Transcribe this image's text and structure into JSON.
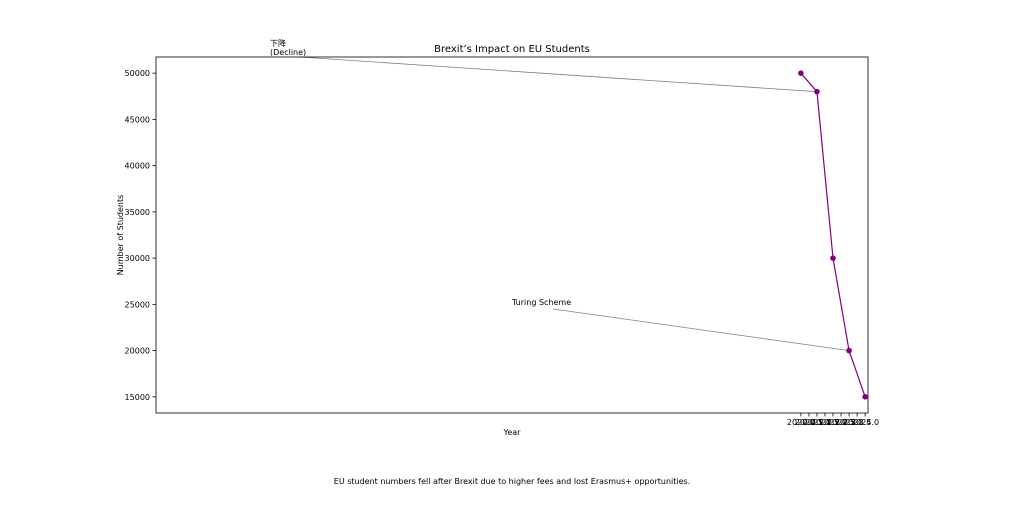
{
  "chart_data": {
    "type": "line",
    "title": "Brexit’s Impact on EU Students",
    "xlabel": "Year",
    "ylabel": "Number of Students",
    "xlim": [
      1979.82,
      2024.18
    ],
    "ylim": [
      13250,
      51750
    ],
    "x_ticks": [
      "2020.0",
      "2020.5",
      "2021.0",
      "2021.5",
      "2022.0",
      "2022.5",
      "2023.0",
      "2023.5",
      "2024.0"
    ],
    "y_ticks": [
      "15000",
      "20000",
      "25000",
      "30000",
      "35000",
      "40000",
      "45000",
      "50000"
    ],
    "x": [
      2020,
      2021,
      2022,
      2023,
      2024
    ],
    "series": [
      {
        "values": [
          50000,
          48000,
          30000,
          20000,
          15000
        ],
        "color": "#800080"
      }
    ],
    "annotations": [
      {
        "text_line1": "下降",
        "text_line2": "(Decline)",
        "x": 2021,
        "y": 48000
      },
      {
        "text": "Turing Scheme",
        "x": 2023,
        "y": 20000
      }
    ],
    "grid": false
  },
  "caption": "EU student numbers fell after Brexit due to higher fees and lost Erasmus+ opportunities."
}
